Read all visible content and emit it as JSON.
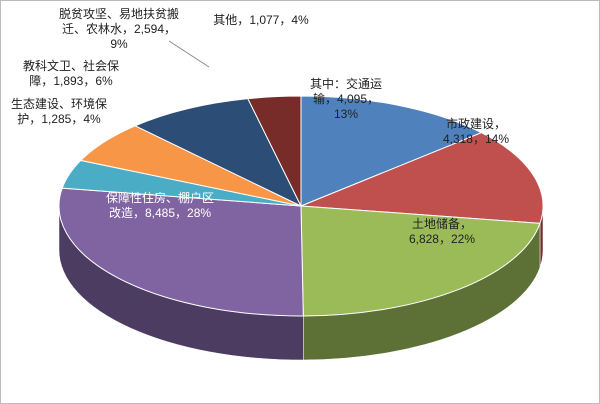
{
  "chart_data": {
    "type": "pie3d",
    "categories": [
      "其中：交通运输",
      "市政建设",
      "土地储备",
      "保障性住房、棚户区改造",
      "生态建设、环境保护",
      "教科文卫、社会保障",
      "脱贫攻坚、易地扶贫搬迁、农林水",
      "其他"
    ],
    "values": [
      4095,
      4318,
      6828,
      8485,
      1285,
      1893,
      2594,
      1077
    ],
    "value_labels": [
      "4,095",
      "4,318",
      "6,828",
      "8,485",
      "1,285",
      "1,893",
      "2,594",
      "1,077"
    ],
    "percents": [
      13,
      14,
      22,
      28,
      4,
      6,
      9,
      4
    ],
    "percent_labels": [
      "13%",
      "14%",
      "22%",
      "28%",
      "4%",
      "6%",
      "9%",
      "4%"
    ],
    "label_separator": "，",
    "colors": [
      "#4f81bd",
      "#c0504d",
      "#9bbb59",
      "#8064a2",
      "#4bacc6",
      "#f79646",
      "#2c4d75",
      "#772c2a"
    ]
  }
}
